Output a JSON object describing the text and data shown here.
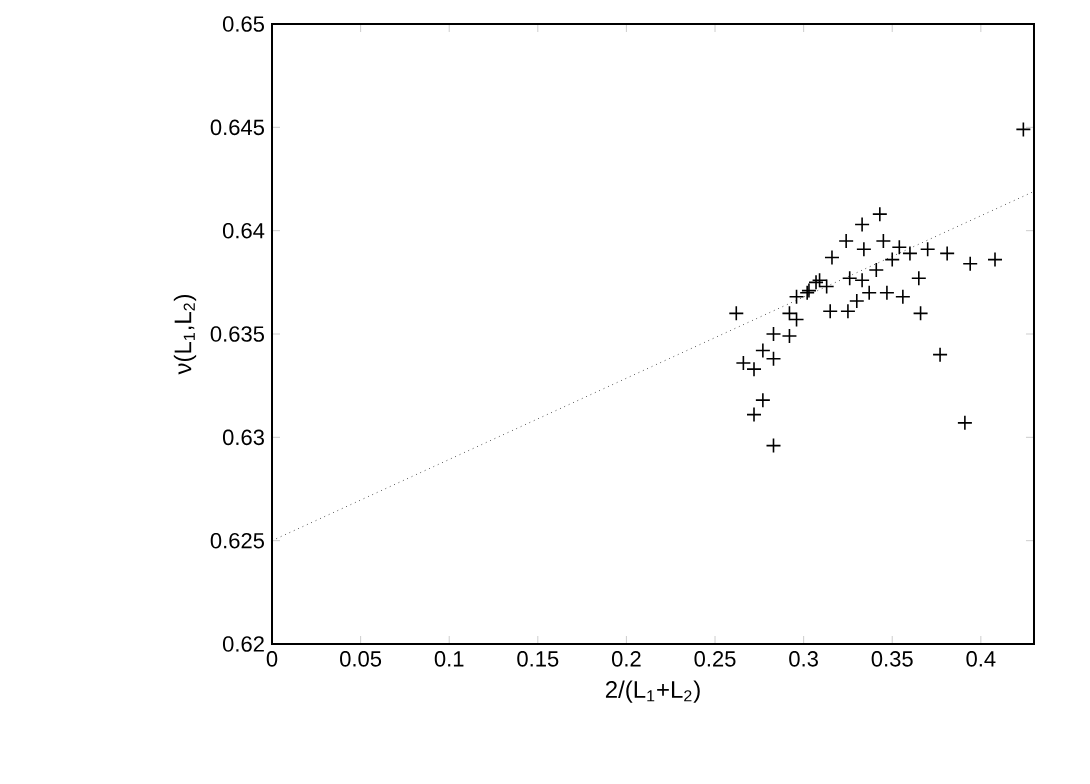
{
  "chart_data": {
    "type": "scatter",
    "xlabel": "2/(L$_{1}$+L$_{2}$)",
    "ylabel": "ν(L$_{1}$,L$_{2}$)",
    "xlim": [
      0,
      0.43
    ],
    "ylim": [
      0.62,
      0.65
    ],
    "xticks": [
      0,
      0.05,
      0.1,
      0.15,
      0.2,
      0.25,
      0.3,
      0.35,
      0.4
    ],
    "yticks": [
      0.62,
      0.625,
      0.63,
      0.635,
      0.64,
      0.645,
      0.65
    ],
    "grid": false,
    "series": [
      {
        "marker": "cross",
        "color": "#000000",
        "x": [
          0.424,
          0.343,
          0.333,
          0.324,
          0.345,
          0.334,
          0.354,
          0.37,
          0.381,
          0.394,
          0.408,
          0.316,
          0.35,
          0.36,
          0.341,
          0.365,
          0.326,
          0.333,
          0.309,
          0.313,
          0.302,
          0.296,
          0.337,
          0.347,
          0.356,
          0.262,
          0.292,
          0.315,
          0.325,
          0.33,
          0.366,
          0.296,
          0.283,
          0.292,
          0.277,
          0.283,
          0.266,
          0.272,
          0.377,
          0.277,
          0.272,
          0.283,
          0.391,
          0.303,
          0.307
        ],
        "values": [
          0.6449,
          0.6408,
          0.6403,
          0.6395,
          0.6395,
          0.6391,
          0.6392,
          0.6391,
          0.6389,
          0.6384,
          0.6386,
          0.6387,
          0.6386,
          0.6389,
          0.6381,
          0.6377,
          0.6377,
          0.6376,
          0.6376,
          0.6373,
          0.637,
          0.6368,
          0.637,
          0.637,
          0.6368,
          0.636,
          0.636,
          0.6361,
          0.6361,
          0.6366,
          0.636,
          0.6357,
          0.635,
          0.6349,
          0.6342,
          0.6338,
          0.6336,
          0.6333,
          0.634,
          0.6318,
          0.6311,
          0.6296,
          0.6307,
          0.6371,
          0.6375
        ]
      },
      {
        "type": "line",
        "marker": "none",
        "line_style": "dotted",
        "color": "#000000",
        "x": [
          0,
          0.43
        ],
        "values": [
          0.625,
          0.6419
        ]
      }
    ]
  }
}
